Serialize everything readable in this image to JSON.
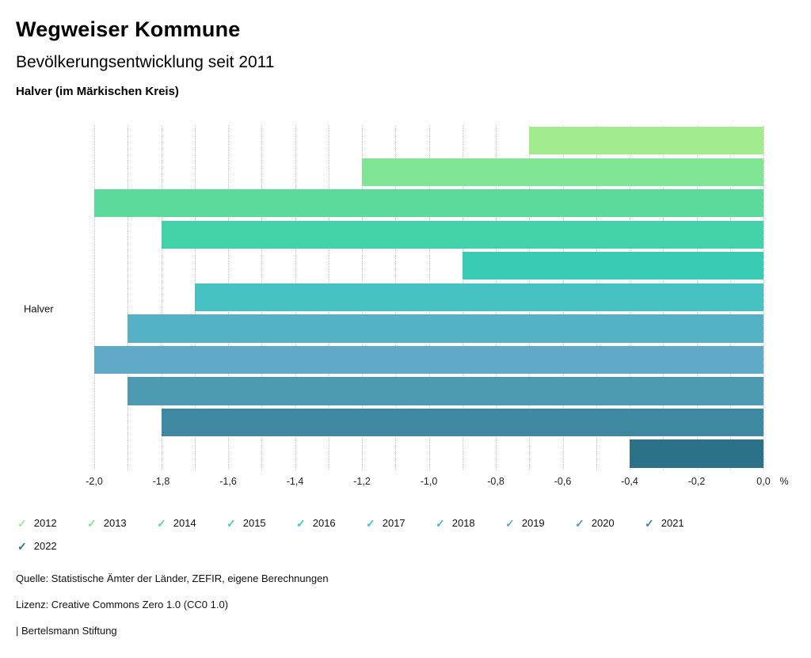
{
  "header": {
    "title": "Wegweiser Kommune",
    "subtitle": "Bevölkerungsentwicklung seit 2011",
    "region": "Halver (im Märkischen Kreis)"
  },
  "chart_data": {
    "type": "bar",
    "orientation": "horizontal",
    "group_label": "Halver",
    "categories": [
      "2012",
      "2013",
      "2014",
      "2015",
      "2016",
      "2017",
      "2018",
      "2019",
      "2020",
      "2021",
      "2022"
    ],
    "values": [
      -0.7,
      -1.2,
      -2.0,
      -1.8,
      -0.9,
      -1.7,
      -1.9,
      -2.0,
      -1.9,
      -1.8,
      -0.4
    ],
    "colors": [
      "#a2eb8e",
      "#7fe494",
      "#5cda9d",
      "#41d2a9",
      "#39ccb5",
      "#46c0c1",
      "#55b2c6",
      "#60aac7",
      "#4f9ab3",
      "#3e88a2",
      "#2b7187"
    ],
    "xlim": [
      -2.0,
      0.0
    ],
    "x_ticks": [
      "-2,0",
      "-1,8",
      "-1,6",
      "-1,4",
      "-1,2",
      "-1,0",
      "-0,8",
      "-0,6",
      "-0,4",
      "-0,2",
      "0,0"
    ],
    "x_unit": "%",
    "minor_grid_divisions": 20,
    "grid": "dotted-vertical",
    "legend_position": "bottom"
  },
  "legend": {
    "check_glyph": "✓"
  },
  "footer": {
    "source": "Quelle: Statistische Ämter der Länder, ZEFIR, eigene Berechnungen",
    "license": "Lizenz: Creative Commons Zero 1.0 (CC0 1.0)",
    "attribution": "| Bertelsmann Stiftung"
  }
}
